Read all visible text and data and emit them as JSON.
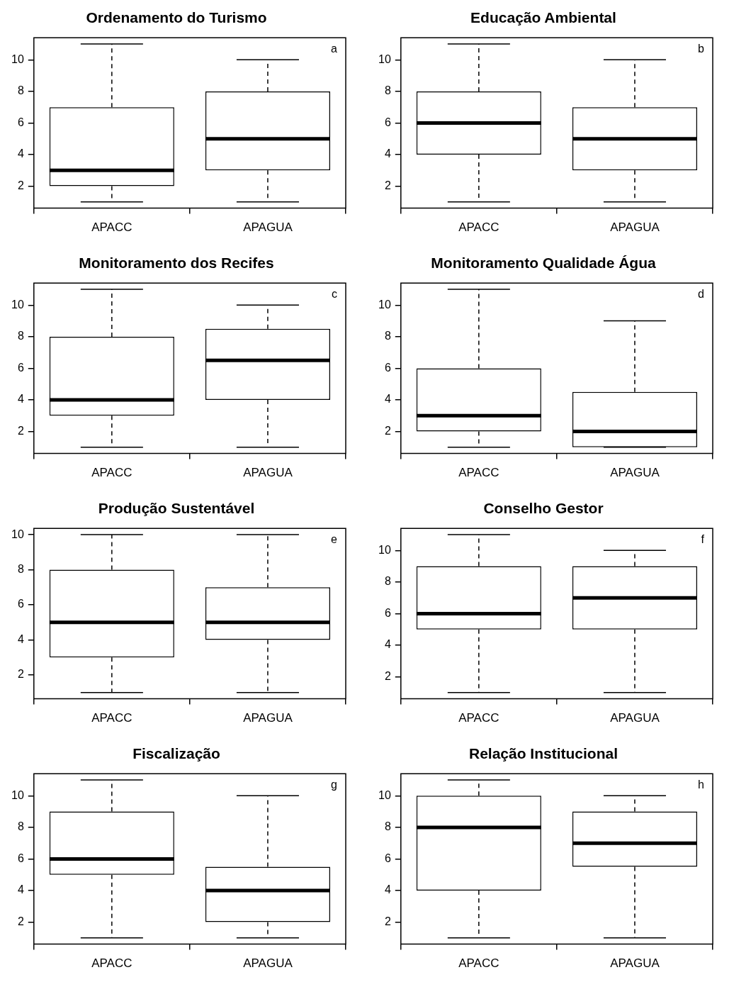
{
  "chart_data": [
    {
      "type": "box",
      "title": "Ordenamento do Turismo",
      "categories": [
        "APACC",
        "APAGUA"
      ],
      "boxes": [
        {
          "low": 1,
          "q1": 2,
          "median": 3,
          "q3": 7,
          "high": 11
        },
        {
          "low": 1,
          "q1": 3,
          "median": 5,
          "q3": 8,
          "high": 10
        }
      ],
      "ylim": [
        0.6,
        11.4
      ],
      "yticks": [
        2,
        4,
        6,
        8,
        10
      ],
      "grid": false,
      "annotations": [
        "a"
      ]
    },
    {
      "type": "box",
      "title": "Educação Ambiental",
      "categories": [
        "APACC",
        "APAGUA"
      ],
      "boxes": [
        {
          "low": 1,
          "q1": 4,
          "median": 6,
          "q3": 8,
          "high": 11
        },
        {
          "low": 1,
          "q1": 3,
          "median": 5,
          "q3": 7,
          "high": 10
        }
      ],
      "ylim": [
        0.6,
        11.4
      ],
      "yticks": [
        2,
        4,
        6,
        8,
        10
      ],
      "grid": false,
      "annotations": [
        "b"
      ]
    },
    {
      "type": "box",
      "title": "Monitoramento dos Recifes",
      "categories": [
        "APACC",
        "APAGUA"
      ],
      "boxes": [
        {
          "low": 1,
          "q1": 3,
          "median": 4,
          "q3": 8,
          "high": 11
        },
        {
          "low": 1,
          "q1": 4,
          "median": 6.5,
          "q3": 8.5,
          "high": 10
        }
      ],
      "ylim": [
        0.6,
        11.4
      ],
      "yticks": [
        2,
        4,
        6,
        8,
        10
      ],
      "grid": false,
      "annotations": [
        "c"
      ]
    },
    {
      "type": "box",
      "title": "Monitoramento Qualidade Água",
      "categories": [
        "APACC",
        "APAGUA"
      ],
      "boxes": [
        {
          "low": 1,
          "q1": 2,
          "median": 3,
          "q3": 6,
          "high": 11
        },
        {
          "low": 1,
          "q1": 1,
          "median": 2,
          "q3": 4.5,
          "high": 9
        }
      ],
      "ylim": [
        0.6,
        11.4
      ],
      "yticks": [
        2,
        4,
        6,
        8,
        10
      ],
      "grid": false,
      "annotations": [
        "d"
      ]
    },
    {
      "type": "box",
      "title": "Produção Sustentável",
      "categories": [
        "APACC",
        "APAGUA"
      ],
      "boxes": [
        {
          "low": 1,
          "q1": 3,
          "median": 5,
          "q3": 8,
          "high": 10
        },
        {
          "low": 1,
          "q1": 4,
          "median": 5,
          "q3": 7,
          "high": 10
        }
      ],
      "ylim": [
        0.64,
        10.36
      ],
      "yticks": [
        2,
        4,
        6,
        8,
        10
      ],
      "grid": false,
      "annotations": [
        "e"
      ]
    },
    {
      "type": "box",
      "title": "Conselho Gestor",
      "categories": [
        "APACC",
        "APAGUA"
      ],
      "boxes": [
        {
          "low": 1,
          "q1": 5,
          "median": 6,
          "q3": 9,
          "high": 11
        },
        {
          "low": 1,
          "q1": 5,
          "median": 7,
          "q3": 9,
          "high": 10
        }
      ],
      "ylim": [
        0.6,
        11.4
      ],
      "yticks": [
        2,
        4,
        6,
        8,
        10
      ],
      "grid": false,
      "annotations": [
        "f"
      ]
    },
    {
      "type": "box",
      "title": "Fiscalização",
      "categories": [
        "APACC",
        "APAGUA"
      ],
      "boxes": [
        {
          "low": 1,
          "q1": 5,
          "median": 6,
          "q3": 9,
          "high": 11
        },
        {
          "low": 1,
          "q1": 2,
          "median": 4,
          "q3": 5.5,
          "high": 10
        }
      ],
      "ylim": [
        0.6,
        11.4
      ],
      "yticks": [
        2,
        4,
        6,
        8,
        10
      ],
      "grid": false,
      "annotations": [
        "g"
      ]
    },
    {
      "type": "box",
      "title": "Relação Institucional",
      "categories": [
        "APACC",
        "APAGUA"
      ],
      "boxes": [
        {
          "low": 1,
          "q1": 4,
          "median": 8,
          "q3": 10,
          "high": 11
        },
        {
          "low": 1,
          "q1": 5.5,
          "median": 7,
          "q3": 9,
          "high": 10
        }
      ],
      "ylim": [
        0.6,
        11.4
      ],
      "yticks": [
        2,
        4,
        6,
        8,
        10
      ],
      "grid": false,
      "annotations": [
        "h"
      ]
    }
  ]
}
